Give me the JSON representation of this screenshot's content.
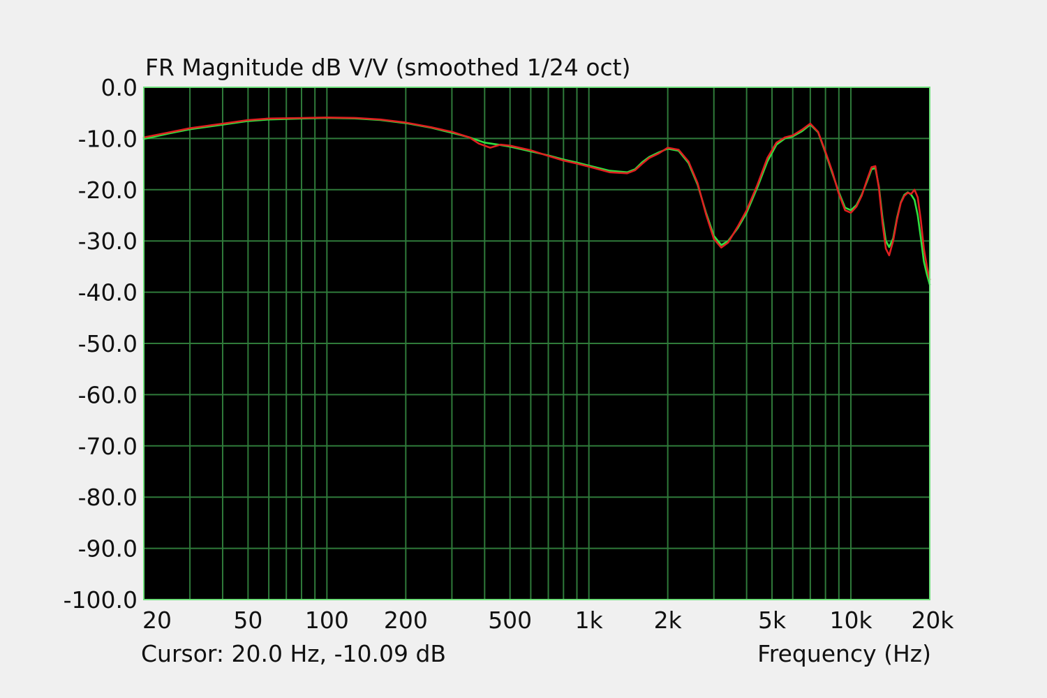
{
  "chart_data": {
    "type": "line",
    "title": "FR Magnitude dB V/V (smoothed 1/24 oct)",
    "xlabel": "Frequency (Hz)",
    "ylabel": "",
    "x_scale": "log",
    "xlim": [
      20,
      20000
    ],
    "ylim": [
      -100,
      0
    ],
    "grid": true,
    "x_ticks": [
      {
        "value": 20,
        "label": "20"
      },
      {
        "value": 50,
        "label": "50"
      },
      {
        "value": 100,
        "label": "100"
      },
      {
        "value": 200,
        "label": "200"
      },
      {
        "value": 500,
        "label": "500"
      },
      {
        "value": 1000,
        "label": "1k"
      },
      {
        "value": 2000,
        "label": "2k"
      },
      {
        "value": 5000,
        "label": "5k"
      },
      {
        "value": 10000,
        "label": "10k"
      },
      {
        "value": 20000,
        "label": "20k"
      }
    ],
    "y_ticks": [
      {
        "value": 0,
        "label": "0.0"
      },
      {
        "value": -10,
        "label": "-10.0"
      },
      {
        "value": -20,
        "label": "-20.0"
      },
      {
        "value": -30,
        "label": "-30.0"
      },
      {
        "value": -40,
        "label": "-40.0"
      },
      {
        "value": -50,
        "label": "-50.0"
      },
      {
        "value": -60,
        "label": "-60.0"
      },
      {
        "value": -70,
        "label": "-70.0"
      },
      {
        "value": -80,
        "label": "-80.0"
      },
      {
        "value": -90,
        "label": "-90.0"
      },
      {
        "value": -100,
        "label": "-100.0"
      }
    ],
    "series": [
      {
        "color": "#30e040",
        "points": [
          [
            20,
            -10.1
          ],
          [
            25,
            -9.0
          ],
          [
            30,
            -8.2
          ],
          [
            40,
            -7.3
          ],
          [
            50,
            -6.6
          ],
          [
            60,
            -6.3
          ],
          [
            80,
            -6.1
          ],
          [
            100,
            -6.0
          ],
          [
            130,
            -6.1
          ],
          [
            160,
            -6.4
          ],
          [
            200,
            -7.0
          ],
          [
            250,
            -7.9
          ],
          [
            300,
            -8.9
          ],
          [
            350,
            -9.8
          ],
          [
            400,
            -10.8
          ],
          [
            450,
            -11.2
          ],
          [
            500,
            -11.6
          ],
          [
            600,
            -12.5
          ],
          [
            700,
            -13.3
          ],
          [
            800,
            -14.1
          ],
          [
            900,
            -14.7
          ],
          [
            1000,
            -15.3
          ],
          [
            1200,
            -16.3
          ],
          [
            1400,
            -16.6
          ],
          [
            1500,
            -16.0
          ],
          [
            1600,
            -14.6
          ],
          [
            1700,
            -13.6
          ],
          [
            1850,
            -12.7
          ],
          [
            2000,
            -12.0
          ],
          [
            2200,
            -12.4
          ],
          [
            2400,
            -14.8
          ],
          [
            2600,
            -19.0
          ],
          [
            2800,
            -24.5
          ],
          [
            3000,
            -29.0
          ],
          [
            3200,
            -30.8
          ],
          [
            3400,
            -30.0
          ],
          [
            3700,
            -27.5
          ],
          [
            4000,
            -24.5
          ],
          [
            4400,
            -19.5
          ],
          [
            4800,
            -14.5
          ],
          [
            5200,
            -11.2
          ],
          [
            5600,
            -10.0
          ],
          [
            6000,
            -9.6
          ],
          [
            6500,
            -8.6
          ],
          [
            7000,
            -7.3
          ],
          [
            7500,
            -8.8
          ],
          [
            8000,
            -12.8
          ],
          [
            8500,
            -16.8
          ],
          [
            9000,
            -20.5
          ],
          [
            9500,
            -23.5
          ],
          [
            10000,
            -24.0
          ],
          [
            10500,
            -23.0
          ],
          [
            11000,
            -21.0
          ],
          [
            11500,
            -18.5
          ],
          [
            12000,
            -16.0
          ],
          [
            12400,
            -15.8
          ],
          [
            12800,
            -19.5
          ],
          [
            13200,
            -25.5
          ],
          [
            13600,
            -30.0
          ],
          [
            14000,
            -31.2
          ],
          [
            14500,
            -29.5
          ],
          [
            15000,
            -25.5
          ],
          [
            15500,
            -22.5
          ],
          [
            16000,
            -21.0
          ],
          [
            16500,
            -20.5
          ],
          [
            17000,
            -21.0
          ],
          [
            17500,
            -22.0
          ],
          [
            18000,
            -25.0
          ],
          [
            18500,
            -29.5
          ],
          [
            19000,
            -34.0
          ],
          [
            19500,
            -36.5
          ],
          [
            20000,
            -38.5
          ]
        ]
      },
      {
        "color": "#e02020",
        "points": [
          [
            20,
            -9.8
          ],
          [
            25,
            -8.8
          ],
          [
            30,
            -8.0
          ],
          [
            40,
            -7.1
          ],
          [
            50,
            -6.4
          ],
          [
            60,
            -6.1
          ],
          [
            80,
            -6.0
          ],
          [
            100,
            -5.9
          ],
          [
            130,
            -6.0
          ],
          [
            160,
            -6.3
          ],
          [
            200,
            -6.9
          ],
          [
            250,
            -7.8
          ],
          [
            300,
            -8.7
          ],
          [
            350,
            -9.8
          ],
          [
            380,
            -11.0
          ],
          [
            420,
            -11.8
          ],
          [
            460,
            -11.2
          ],
          [
            500,
            -11.4
          ],
          [
            600,
            -12.3
          ],
          [
            700,
            -13.4
          ],
          [
            800,
            -14.3
          ],
          [
            900,
            -14.9
          ],
          [
            1000,
            -15.5
          ],
          [
            1200,
            -16.6
          ],
          [
            1400,
            -16.8
          ],
          [
            1500,
            -16.2
          ],
          [
            1600,
            -14.9
          ],
          [
            1700,
            -13.8
          ],
          [
            1850,
            -12.9
          ],
          [
            2000,
            -11.8
          ],
          [
            2200,
            -12.2
          ],
          [
            2400,
            -14.5
          ],
          [
            2600,
            -18.7
          ],
          [
            2800,
            -24.8
          ],
          [
            3000,
            -29.6
          ],
          [
            3200,
            -31.3
          ],
          [
            3400,
            -30.3
          ],
          [
            3700,
            -27.2
          ],
          [
            4000,
            -24.0
          ],
          [
            4400,
            -19.0
          ],
          [
            4800,
            -13.8
          ],
          [
            5200,
            -10.8
          ],
          [
            5600,
            -9.8
          ],
          [
            6000,
            -9.4
          ],
          [
            6500,
            -8.3
          ],
          [
            7000,
            -7.1
          ],
          [
            7500,
            -8.7
          ],
          [
            8000,
            -12.6
          ],
          [
            8500,
            -16.5
          ],
          [
            9000,
            -20.8
          ],
          [
            9500,
            -24.0
          ],
          [
            10000,
            -24.5
          ],
          [
            10500,
            -23.3
          ],
          [
            11000,
            -21.2
          ],
          [
            11500,
            -18.2
          ],
          [
            12000,
            -15.6
          ],
          [
            12400,
            -15.4
          ],
          [
            12800,
            -19.8
          ],
          [
            13200,
            -26.5
          ],
          [
            13600,
            -31.5
          ],
          [
            14000,
            -32.8
          ],
          [
            14500,
            -30.0
          ],
          [
            15000,
            -25.8
          ],
          [
            15500,
            -22.6
          ],
          [
            16000,
            -21.2
          ],
          [
            16500,
            -20.6
          ],
          [
            17000,
            -20.8
          ],
          [
            17500,
            -20.0
          ],
          [
            18000,
            -21.5
          ],
          [
            18500,
            -26.0
          ],
          [
            19000,
            -31.5
          ],
          [
            19500,
            -35.0
          ],
          [
            20000,
            -37.5
          ]
        ]
      }
    ],
    "annotations": [
      {
        "text": "Cursor: 20.0 Hz, -10.09 dB"
      }
    ]
  },
  "colors": {
    "plot_background": "#000000",
    "grid": "#2f7a3a",
    "frame": "#6ee07a",
    "page_background": "#f0f0f0"
  }
}
